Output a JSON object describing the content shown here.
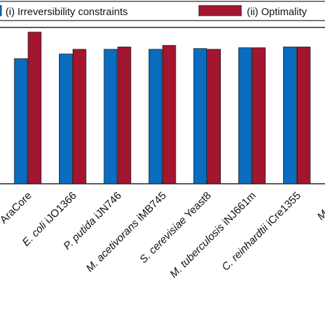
{
  "chart_data": {
    "type": "bar",
    "categories": [
      "AraCore",
      "E. coli iJO1366",
      "P. putida iJN746",
      "M. acetivorans iMB745",
      "S. cerevisiae Yeast8",
      "M. tuberculosis iNJ661m",
      "C. reinhardtii iCre1355",
      "M. mus"
    ],
    "category_italic": [
      "",
      "E. coli",
      "P. putida",
      "M. acetivorans",
      "S. cerevisiae",
      "M. tuberculosis",
      "C. reinhardtii",
      "M. mus"
    ],
    "category_plain": [
      "AraCore",
      " iJO1366",
      " iJN746",
      " iMB745",
      " Yeast8",
      " iNJ661m",
      " iCre1355",
      ""
    ],
    "series": [
      {
        "name": "(i) Irreversibility constraints",
        "color": "#0b6bbf",
        "values": [
          0.8,
          0.83,
          0.86,
          0.86,
          0.865,
          0.87,
          0.875,
          null
        ]
      },
      {
        "name": "(ii) Optimality",
        "color": "#a4152f",
        "values": [
          0.97,
          0.86,
          0.875,
          0.885,
          0.86,
          0.87,
          0.875,
          null
        ]
      }
    ],
    "ylim": [
      0,
      1.0
    ],
    "legend_position": "top",
    "grid": false
  }
}
